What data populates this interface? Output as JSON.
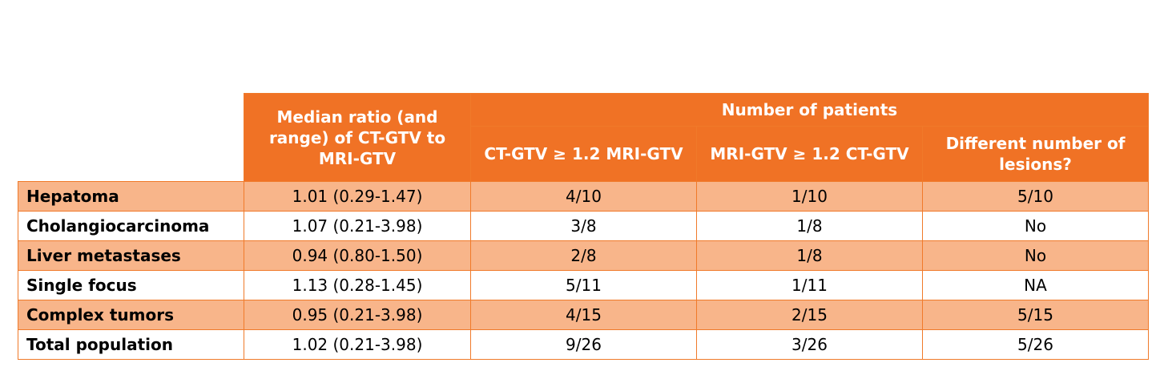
{
  "table": {
    "header": {
      "median_ratio": "Median ratio (and range) of CT-GTV to MRI-GTV",
      "number_of_patients": "Number of patients",
      "ct_ge_mri": "CT-GTV ≥ 1.2 MRI-GTV",
      "mri_ge_ct": "MRI-GTV ≥ 1.2 CT-GTV",
      "different_lesions": "Different number of lesions?"
    },
    "rows": [
      {
        "label": "Hepatoma",
        "ratio": "1.01 (0.29-1.47)",
        "ct": "4/10",
        "mri": "1/10",
        "lesions": "5/10"
      },
      {
        "label": "Cholangiocarcinoma",
        "ratio": "1.07 (0.21-3.98)",
        "ct": "3/8",
        "mri": "1/8",
        "lesions": "No"
      },
      {
        "label": "Liver metastases",
        "ratio": "0.94 (0.80-1.50)",
        "ct": "2/8",
        "mri": "1/8",
        "lesions": "No"
      },
      {
        "label": "Single focus",
        "ratio": "1.13 (0.28-1.45)",
        "ct": "5/11",
        "mri": "1/11",
        "lesions": "NA"
      },
      {
        "label": "Complex tumors",
        "ratio": "0.95 (0.21-3.98)",
        "ct": "4/15",
        "mri": "2/15",
        "lesions": "5/15"
      },
      {
        "label": "Total population",
        "ratio": "1.02 (0.21-3.98)",
        "ct": "9/26",
        "mri": "3/26",
        "lesions": "5/26"
      }
    ],
    "colors": {
      "header_bg": "#f07225",
      "shaded_row_bg": "#f8b58a",
      "border": "#f07a2a"
    }
  }
}
